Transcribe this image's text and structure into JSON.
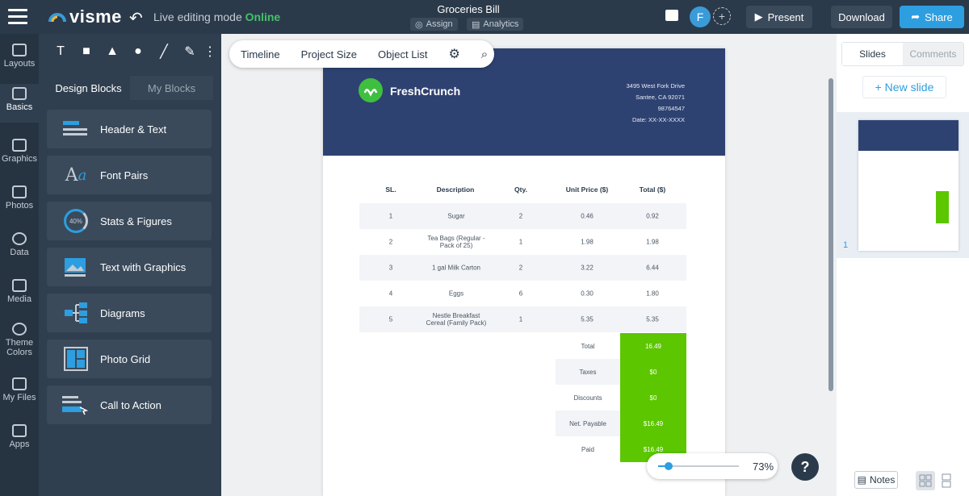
{
  "topbar": {
    "app_name": "visme",
    "mode_label": "Live editing mode",
    "mode_status": "Online",
    "doc_title": "Groceries Bill",
    "assign_label": "Assign",
    "analytics_label": "Analytics",
    "avatar_letter": "F",
    "present_label": "Present",
    "download_label": "Download",
    "share_label": "Share"
  },
  "rail": {
    "items": [
      {
        "label": "Layouts"
      },
      {
        "label": "Basics"
      },
      {
        "label": "Graphics"
      },
      {
        "label": "Photos"
      },
      {
        "label": "Data"
      },
      {
        "label": "Media"
      },
      {
        "label": "Theme Colors"
      },
      {
        "label": "My Files"
      },
      {
        "label": "Apps"
      }
    ]
  },
  "leftpanel": {
    "tabs": [
      "Design Blocks",
      "My Blocks"
    ],
    "blocks": [
      {
        "label": "Header & Text"
      },
      {
        "label": "Font Pairs"
      },
      {
        "label": "Stats & Figures",
        "icon_text": "40%"
      },
      {
        "label": "Text with Graphics"
      },
      {
        "label": "Diagrams"
      },
      {
        "label": "Photo Grid"
      },
      {
        "label": "Call to Action"
      }
    ]
  },
  "subtoolbar": {
    "items": [
      "Timeline",
      "Project Size",
      "Object List"
    ]
  },
  "invoice": {
    "brand": "FreshCrunch",
    "address_lines": [
      "3495 West Fork Drive",
      "Santee, CA 92071",
      "98764547",
      "Date:   XX-XX-XXXX"
    ],
    "headers": [
      "SL.",
      "Description",
      "Qty.",
      "Unit Price ($)",
      "Total ($)"
    ],
    "rows": [
      {
        "sl": "1",
        "desc": "Sugar",
        "qty": "2",
        "unit": "0.46",
        "total": "0.92"
      },
      {
        "sl": "2",
        "desc": "Tea Bags (Regular - Pack of 25)",
        "qty": "1",
        "unit": "1.98",
        "total": "1.98"
      },
      {
        "sl": "3",
        "desc": "1 gal Milk Carton",
        "qty": "2",
        "unit": "3.22",
        "total": "6.44"
      },
      {
        "sl": "4",
        "desc": "Eggs",
        "qty": "6",
        "unit": "0.30",
        "total": "1.80"
      },
      {
        "sl": "5",
        "desc": "Nestle Breakfast Cereal (Family Pack)",
        "qty": "1",
        "unit": "5.35",
        "total": "5.35"
      }
    ],
    "totals": [
      {
        "label": "Total",
        "value": "16.49"
      },
      {
        "label": "Taxes",
        "value": "$0"
      },
      {
        "label": "Discounts",
        "value": "$0"
      },
      {
        "label": "Net. Payable",
        "value": "$16.49"
      },
      {
        "label": "Paid",
        "value": "$16.49"
      }
    ],
    "accent_color": "#5cc600",
    "header_color": "#2e4272"
  },
  "zoom": {
    "value_label": "73%",
    "level": 0.13
  },
  "rightpanel": {
    "tabs": [
      "Slides",
      "Comments"
    ],
    "new_slide_label": "+ New slide",
    "slide_number": "1",
    "notes_label": "Notes"
  }
}
